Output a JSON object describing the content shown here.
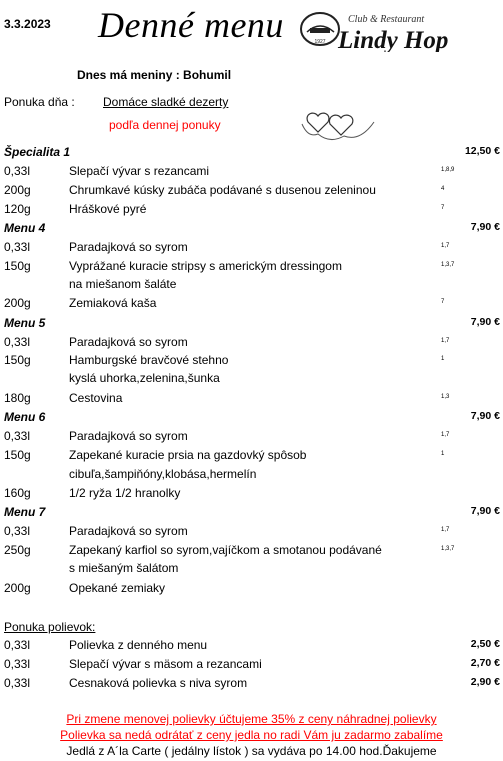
{
  "header": {
    "date": "3.3.2023",
    "title": "Denné menu",
    "logo_small": "Club & Restaurant",
    "logo_main": "Lindy Hop",
    "logo_year": "1927",
    "name_day": "Dnes má meniny : Bohumil"
  },
  "offer": {
    "label": "Ponuka dňa :",
    "value": "Domáce sladké dezerty",
    "sub": "podľa dennej ponuky"
  },
  "rows": [
    {
      "kind": "section",
      "title": "Špecialita 1",
      "price": "12,50 €"
    },
    {
      "kind": "item",
      "qty": "0,33l",
      "name": "Slepačí vývar s rezancami",
      "alg": "1,8,9"
    },
    {
      "kind": "item",
      "qty": "200g",
      "name": "Chrumkavé kúsky zubáča podávané s dusenou zeleninou",
      "alg": "4"
    },
    {
      "kind": "item",
      "qty": "120g",
      "name": "Hráškové pyré",
      "alg": "7"
    },
    {
      "kind": "section",
      "title": "Menu 4",
      "price": "7,90 €"
    },
    {
      "kind": "item",
      "qty": "0,33l",
      "name": "Paradajková so syrom",
      "alg": "1,7"
    },
    {
      "kind": "item",
      "qty": "150g",
      "name": "Vyprážané kuracie stripsy s americkým dressingom",
      "alg": "1,3,7"
    },
    {
      "kind": "item",
      "qty": "",
      "name": "na miešanom šaláte",
      "alg": ""
    },
    {
      "kind": "item",
      "qty": "200g",
      "name": "Zemiaková kaša",
      "alg": "7"
    },
    {
      "kind": "section",
      "title": "Menu 5",
      "price": "7,90 €"
    },
    {
      "kind": "item",
      "qty": "0,33l",
      "name": "Paradajková so syrom",
      "alg": "1,7"
    },
    {
      "kind": "item",
      "qty": "150g",
      "name": "Hamburgské bravčové stehno",
      "alg": "1"
    },
    {
      "kind": "item",
      "qty": "",
      "name": "kyslá uhorka,zelenina,šunka",
      "alg": ""
    },
    {
      "kind": "item",
      "qty": "180g",
      "name": "Cestovina",
      "alg": "1,3"
    },
    {
      "kind": "section",
      "title": "Menu 6",
      "price": "7,90 €"
    },
    {
      "kind": "item",
      "qty": "0,33l",
      "name": "Paradajková so syrom",
      "alg": "1,7"
    },
    {
      "kind": "item",
      "qty": "150g",
      "name": "Zapekané kuracie prsia na gazdovký spôsob",
      "alg": "1"
    },
    {
      "kind": "item",
      "qty": "",
      "name": "cibuľa,šampiňóny,klobása,hermelín",
      "alg": ""
    },
    {
      "kind": "item",
      "qty": "160g",
      "name": "1/2 ryža 1/2 hranolky",
      "alg": ""
    },
    {
      "kind": "section",
      "title": "Menu 7",
      "price": "7,90 €"
    },
    {
      "kind": "item",
      "qty": "0,33l",
      "name": "Paradajková so syrom",
      "alg": "1,7"
    },
    {
      "kind": "item",
      "qty": "250g",
      "name": "Zapekaný karfiol so syrom,vajíčkom a smotanou podávané",
      "alg": "1,3,7"
    },
    {
      "kind": "item",
      "qty": "",
      "name": "s miešaným šalátom",
      "alg": ""
    },
    {
      "kind": "item",
      "qty": "200g",
      "name": "Opekané zemiaky",
      "alg": ""
    },
    {
      "kind": "section_plain",
      "title": "Ponuka polievok:",
      "price": ""
    },
    {
      "kind": "item",
      "qty": "0,33l",
      "name": "Polievka z denného menu",
      "alg": "",
      "price": "2,50 €"
    },
    {
      "kind": "item",
      "qty": "0,33l",
      "name": "Slepačí vývar s mäsom a rezancami",
      "alg": "",
      "price": "2,70 €"
    },
    {
      "kind": "item",
      "qty": "0,33l",
      "name": "Cesnaková polievka s niva syrom",
      "alg": "",
      "price": "2,90 €"
    }
  ],
  "notes": {
    "red1": "Pri zmene menovej polievky účtujeme 35% z ceny náhradnej polievky",
    "red2": "Polievka sa nedá odrátať z ceny jedla no radi Vám ju zadarmo zabalíme",
    "black": "Jedlá z A´la Carte ( jedálny lístok ) sa vydáva po 14.00 hod.Ďakujeme"
  },
  "colors": {
    "accent_red": "#ff0000",
    "text": "#000000"
  },
  "icons": [
    "hearts-doodle-icon",
    "restaurant-logo-icon"
  ]
}
